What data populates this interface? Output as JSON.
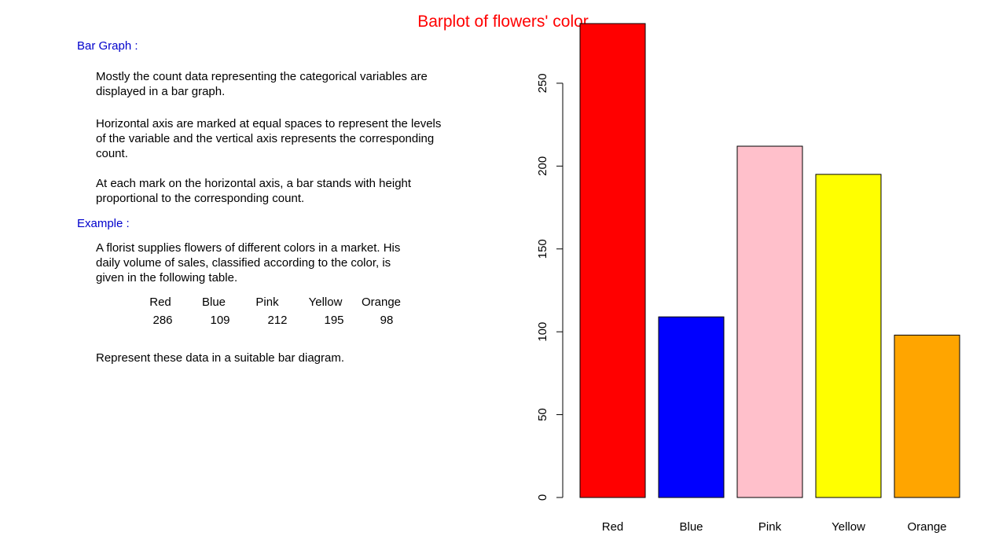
{
  "text": {
    "bar_graph_heading": "Bar Graph :",
    "para1": "Mostly the count data representing the categorical variables are displayed in a bar graph.",
    "para2": "Horizontal axis are marked at equal spaces to represent the levels of the variable and the vertical axis represents the corresponding count.",
    "para3": "At each mark on the horizontal axis, a bar stands with height proportional to the corresponding count.",
    "example_heading": "Example :",
    "para4": "A florist supplies flowers of different colors in a market. His daily volume of sales, classified according to the color, is given in the following table.",
    "table": {
      "headers": [
        "Red",
        "Blue",
        "Pink",
        "Yellow",
        "Orange"
      ],
      "values": [
        "286",
        "109",
        "212",
        "195",
        "98"
      ]
    },
    "para5": "Represent these data in a suitable bar diagram."
  },
  "colors": {
    "heading": "#0000cc",
    "title": "#ff0000"
  },
  "chart_data": {
    "type": "bar",
    "title": "Barplot of flowers' color",
    "xlabel": "",
    "ylabel": "",
    "categories": [
      "Red",
      "Blue",
      "Pink",
      "Yellow",
      "Orange"
    ],
    "values": [
      286,
      109,
      212,
      195,
      98
    ],
    "bar_colors": [
      "#ff0000",
      "#0000ff",
      "#ffc0cb",
      "#ffff00",
      "#ffa500"
    ],
    "ylim": [
      0,
      286
    ],
    "yticks": [
      0,
      50,
      100,
      150,
      200,
      250
    ],
    "grid": false,
    "legend": "none"
  }
}
